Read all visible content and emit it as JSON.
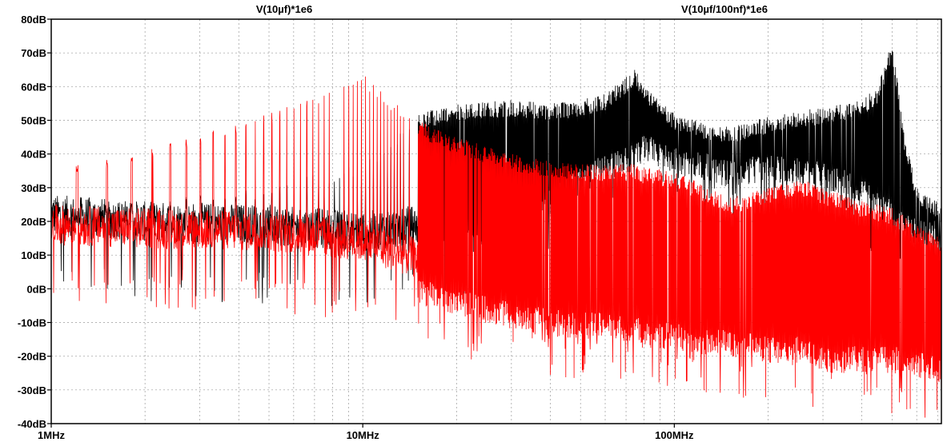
{
  "chart_data": {
    "type": "line",
    "title": "",
    "xlabel": "",
    "ylabel": "",
    "x_scale": "log",
    "xlim": [
      "1MHz",
      "720MHz"
    ],
    "ylim": [
      -40,
      80
    ],
    "grid": true,
    "legend_placement": "top",
    "x_tick_labels": [
      "1MHz",
      "10MHz",
      "100MHz"
    ],
    "y_tick_labels": [
      "80dB",
      "70dB",
      "60dB",
      "50dB",
      "40dB",
      "30dB",
      "20dB",
      "10dB",
      "0dB",
      "-10dB",
      "-20dB",
      "-30dB",
      "-40dB"
    ],
    "series": [
      {
        "name": "V(10µf)*1e6",
        "color": "#000000",
        "x_mhz": [
          1,
          2,
          5,
          10,
          15,
          20,
          30,
          40,
          50,
          60,
          70,
          75,
          80,
          100,
          130,
          150,
          200,
          300,
          400,
          450,
          480,
          500,
          550,
          600,
          720
        ],
        "upper_db": [
          22,
          26,
          30,
          38,
          52,
          55,
          56,
          55,
          56,
          58,
          63,
          66,
          60,
          52,
          49,
          48,
          51,
          54,
          56,
          60,
          68,
          74,
          45,
          30,
          25
        ],
        "lower_db": [
          8,
          6,
          5,
          3,
          5,
          8,
          15,
          22,
          28,
          32,
          34,
          35,
          38,
          34,
          32,
          30,
          32,
          30,
          25,
          22,
          20,
          18,
          15,
          13,
          12
        ]
      },
      {
        "name": "V(10µf/100nf)*1e6",
        "color": "#ff0000",
        "x_mhz": [
          1,
          2,
          5,
          10,
          15,
          20,
          30,
          40,
          50,
          60,
          75,
          80,
          100,
          130,
          150,
          200,
          250,
          300,
          400,
          500,
          720
        ],
        "upper_db": [
          35,
          42,
          52,
          64,
          50,
          45,
          40,
          38,
          37,
          37,
          37,
          36,
          35,
          30,
          27,
          30,
          33,
          30,
          26,
          24,
          15
        ],
        "lower_db": [
          5,
          4,
          3,
          0,
          -5,
          -8,
          -12,
          -14,
          -15,
          -15,
          -16,
          -18,
          -18,
          -20,
          -20,
          -22,
          -22,
          -25,
          -25,
          -25,
          -28
        ]
      }
    ]
  }
}
